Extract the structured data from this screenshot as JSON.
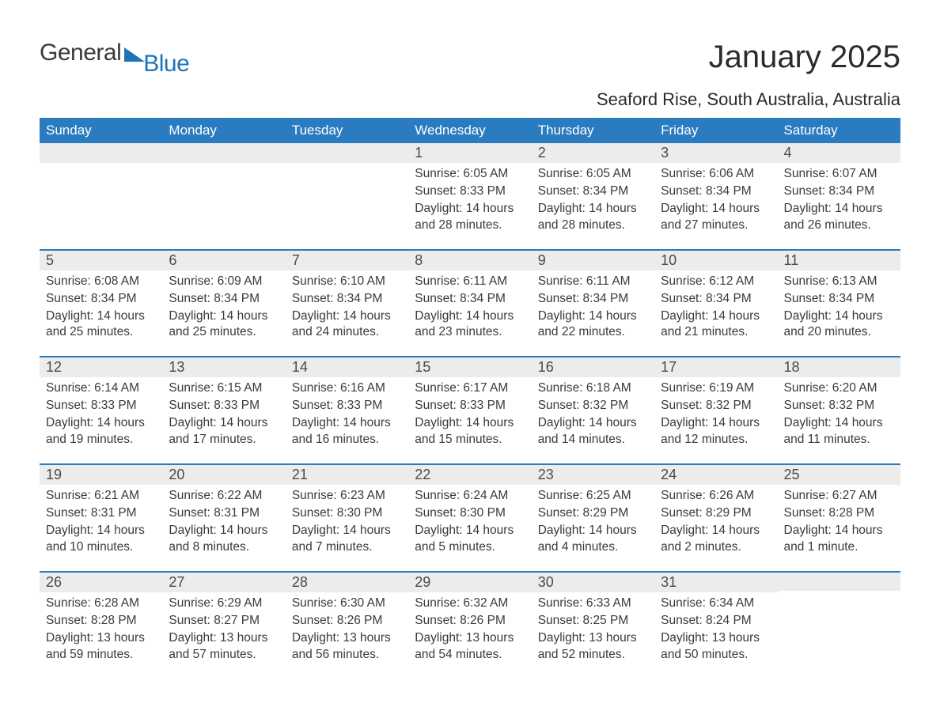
{
  "brand": {
    "word1": "General",
    "word2": "Blue"
  },
  "title": "January 2025",
  "subtitle": "Seaford Rise, South Australia, Australia",
  "colors": {
    "header_bg": "#2a7bbf",
    "header_text": "#ffffff",
    "daybar_bg": "#ececec",
    "daybar_border": "#2a7bbf",
    "body_text": "#3a3a3a",
    "brand_blue": "#1d74b8",
    "page_bg": "#ffffff"
  },
  "typography": {
    "title_fontsize": 40,
    "subtitle_fontsize": 22,
    "dow_fontsize": 17,
    "daynum_fontsize": 18,
    "info_fontsize": 15.5
  },
  "columns": [
    "Sunday",
    "Monday",
    "Tuesday",
    "Wednesday",
    "Thursday",
    "Friday",
    "Saturday"
  ],
  "weeks": [
    [
      null,
      null,
      null,
      {
        "n": "1",
        "sunrise": "Sunrise: 6:05 AM",
        "sunset": "Sunset: 8:33 PM",
        "daylight": "Daylight: 14 hours and 28 minutes."
      },
      {
        "n": "2",
        "sunrise": "Sunrise: 6:05 AM",
        "sunset": "Sunset: 8:34 PM",
        "daylight": "Daylight: 14 hours and 28 minutes."
      },
      {
        "n": "3",
        "sunrise": "Sunrise: 6:06 AM",
        "sunset": "Sunset: 8:34 PM",
        "daylight": "Daylight: 14 hours and 27 minutes."
      },
      {
        "n": "4",
        "sunrise": "Sunrise: 6:07 AM",
        "sunset": "Sunset: 8:34 PM",
        "daylight": "Daylight: 14 hours and 26 minutes."
      }
    ],
    [
      {
        "n": "5",
        "sunrise": "Sunrise: 6:08 AM",
        "sunset": "Sunset: 8:34 PM",
        "daylight": "Daylight: 14 hours and 25 minutes."
      },
      {
        "n": "6",
        "sunrise": "Sunrise: 6:09 AM",
        "sunset": "Sunset: 8:34 PM",
        "daylight": "Daylight: 14 hours and 25 minutes."
      },
      {
        "n": "7",
        "sunrise": "Sunrise: 6:10 AM",
        "sunset": "Sunset: 8:34 PM",
        "daylight": "Daylight: 14 hours and 24 minutes."
      },
      {
        "n": "8",
        "sunrise": "Sunrise: 6:11 AM",
        "sunset": "Sunset: 8:34 PM",
        "daylight": "Daylight: 14 hours and 23 minutes."
      },
      {
        "n": "9",
        "sunrise": "Sunrise: 6:11 AM",
        "sunset": "Sunset: 8:34 PM",
        "daylight": "Daylight: 14 hours and 22 minutes."
      },
      {
        "n": "10",
        "sunrise": "Sunrise: 6:12 AM",
        "sunset": "Sunset: 8:34 PM",
        "daylight": "Daylight: 14 hours and 21 minutes."
      },
      {
        "n": "11",
        "sunrise": "Sunrise: 6:13 AM",
        "sunset": "Sunset: 8:34 PM",
        "daylight": "Daylight: 14 hours and 20 minutes."
      }
    ],
    [
      {
        "n": "12",
        "sunrise": "Sunrise: 6:14 AM",
        "sunset": "Sunset: 8:33 PM",
        "daylight": "Daylight: 14 hours and 19 minutes."
      },
      {
        "n": "13",
        "sunrise": "Sunrise: 6:15 AM",
        "sunset": "Sunset: 8:33 PM",
        "daylight": "Daylight: 14 hours and 17 minutes."
      },
      {
        "n": "14",
        "sunrise": "Sunrise: 6:16 AM",
        "sunset": "Sunset: 8:33 PM",
        "daylight": "Daylight: 14 hours and 16 minutes."
      },
      {
        "n": "15",
        "sunrise": "Sunrise: 6:17 AM",
        "sunset": "Sunset: 8:33 PM",
        "daylight": "Daylight: 14 hours and 15 minutes."
      },
      {
        "n": "16",
        "sunrise": "Sunrise: 6:18 AM",
        "sunset": "Sunset: 8:32 PM",
        "daylight": "Daylight: 14 hours and 14 minutes."
      },
      {
        "n": "17",
        "sunrise": "Sunrise: 6:19 AM",
        "sunset": "Sunset: 8:32 PM",
        "daylight": "Daylight: 14 hours and 12 minutes."
      },
      {
        "n": "18",
        "sunrise": "Sunrise: 6:20 AM",
        "sunset": "Sunset: 8:32 PM",
        "daylight": "Daylight: 14 hours and 11 minutes."
      }
    ],
    [
      {
        "n": "19",
        "sunrise": "Sunrise: 6:21 AM",
        "sunset": "Sunset: 8:31 PM",
        "daylight": "Daylight: 14 hours and 10 minutes."
      },
      {
        "n": "20",
        "sunrise": "Sunrise: 6:22 AM",
        "sunset": "Sunset: 8:31 PM",
        "daylight": "Daylight: 14 hours and 8 minutes."
      },
      {
        "n": "21",
        "sunrise": "Sunrise: 6:23 AM",
        "sunset": "Sunset: 8:30 PM",
        "daylight": "Daylight: 14 hours and 7 minutes."
      },
      {
        "n": "22",
        "sunrise": "Sunrise: 6:24 AM",
        "sunset": "Sunset: 8:30 PM",
        "daylight": "Daylight: 14 hours and 5 minutes."
      },
      {
        "n": "23",
        "sunrise": "Sunrise: 6:25 AM",
        "sunset": "Sunset: 8:29 PM",
        "daylight": "Daylight: 14 hours and 4 minutes."
      },
      {
        "n": "24",
        "sunrise": "Sunrise: 6:26 AM",
        "sunset": "Sunset: 8:29 PM",
        "daylight": "Daylight: 14 hours and 2 minutes."
      },
      {
        "n": "25",
        "sunrise": "Sunrise: 6:27 AM",
        "sunset": "Sunset: 8:28 PM",
        "daylight": "Daylight: 14 hours and 1 minute."
      }
    ],
    [
      {
        "n": "26",
        "sunrise": "Sunrise: 6:28 AM",
        "sunset": "Sunset: 8:28 PM",
        "daylight": "Daylight: 13 hours and 59 minutes."
      },
      {
        "n": "27",
        "sunrise": "Sunrise: 6:29 AM",
        "sunset": "Sunset: 8:27 PM",
        "daylight": "Daylight: 13 hours and 57 minutes."
      },
      {
        "n": "28",
        "sunrise": "Sunrise: 6:30 AM",
        "sunset": "Sunset: 8:26 PM",
        "daylight": "Daylight: 13 hours and 56 minutes."
      },
      {
        "n": "29",
        "sunrise": "Sunrise: 6:32 AM",
        "sunset": "Sunset: 8:26 PM",
        "daylight": "Daylight: 13 hours and 54 minutes."
      },
      {
        "n": "30",
        "sunrise": "Sunrise: 6:33 AM",
        "sunset": "Sunset: 8:25 PM",
        "daylight": "Daylight: 13 hours and 52 minutes."
      },
      {
        "n": "31",
        "sunrise": "Sunrise: 6:34 AM",
        "sunset": "Sunset: 8:24 PM",
        "daylight": "Daylight: 13 hours and 50 minutes."
      },
      null
    ]
  ]
}
